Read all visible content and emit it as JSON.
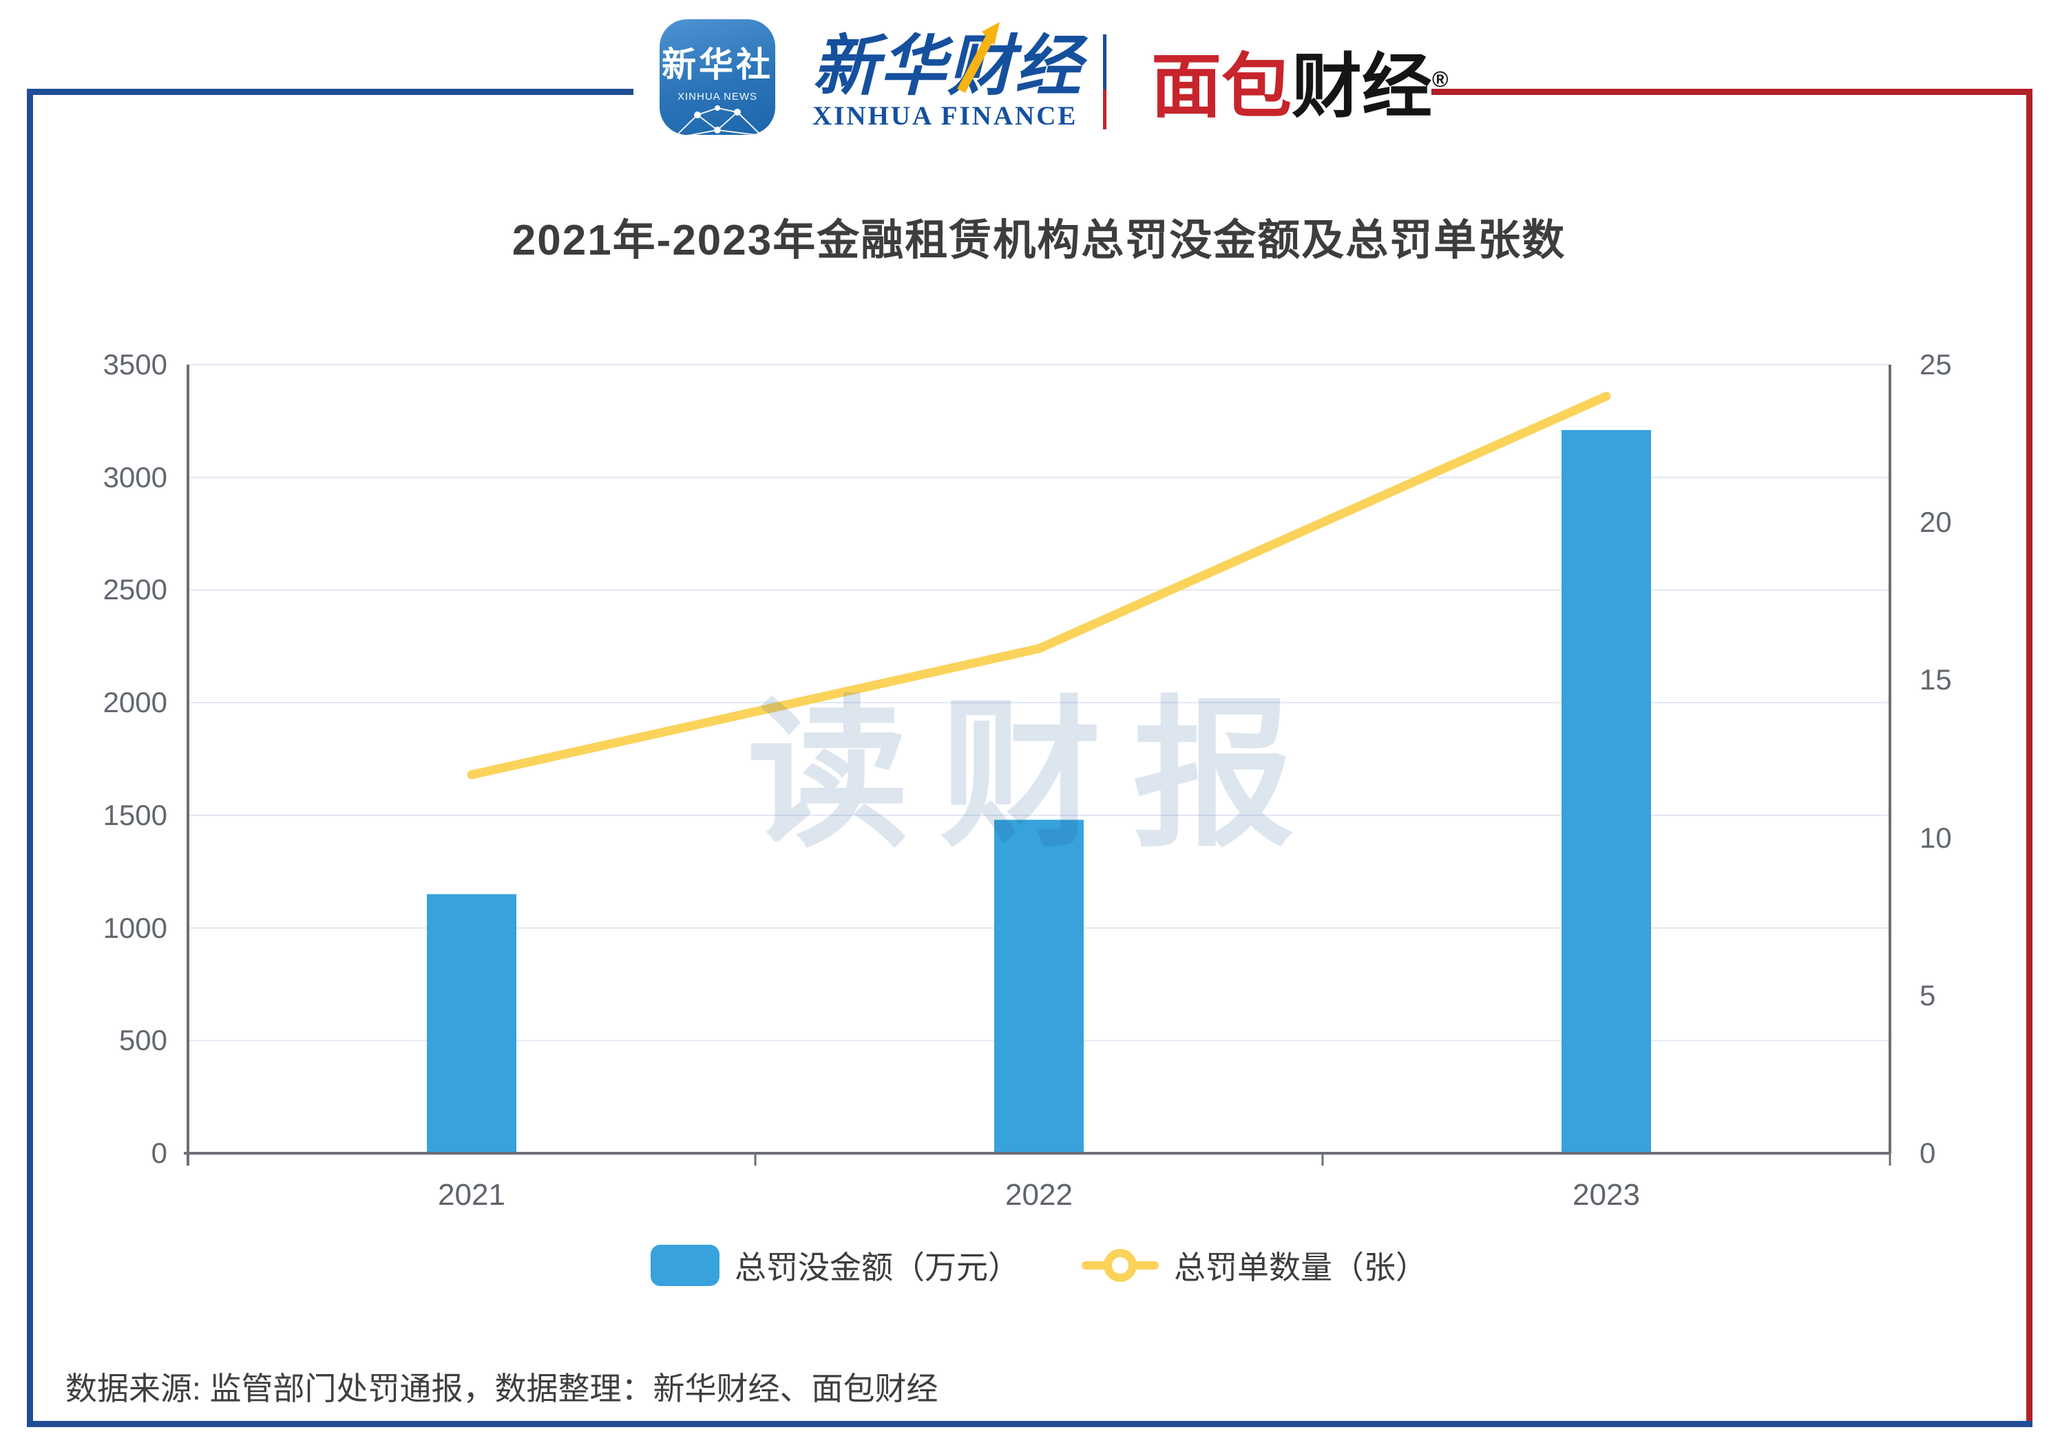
{
  "header": {
    "xinhua_news_icon": {
      "line1": "新华社",
      "line2": "XINHUA NEWS"
    },
    "xinhua_finance": {
      "cn": "新华财经",
      "en": "XINHUA FINANCE"
    },
    "mianbao": {
      "part_red": "面包",
      "part_black": "财经",
      "reg": "®"
    }
  },
  "title": "2021年-2023年金融租赁机构总罚没金额及总罚单张数",
  "watermark": "读财报",
  "footer": "数据来源: 监管部门处罚通报，数据整理：新华财经、面包财经",
  "colors": {
    "bar": "#37A2DC",
    "line": "#FBD35B",
    "grid": "#E1E8F4",
    "axis": "#6B6F76",
    "tick_text": "#62676F",
    "title_text": "#3D3D3D",
    "frame_blue": "#1F4E94",
    "frame_red": "#B22028",
    "watermark": "rgba(28,78,140,0.15)",
    "xinhua_blue": "#15509E",
    "mianbao_red": "#C8242B"
  },
  "chart_data": {
    "type": "combo",
    "categories": [
      "2021",
      "2022",
      "2023"
    ],
    "series": [
      {
        "name": "总罚没金额（万元）",
        "type": "bar",
        "axis": "left",
        "values": [
          1150,
          1480,
          3210
        ],
        "color": "#37A2DC"
      },
      {
        "name": "总罚单数量（张）",
        "type": "line",
        "axis": "right",
        "values": [
          12,
          16,
          24
        ],
        "color": "#FBD35B"
      }
    ],
    "left_axis": {
      "min": 0,
      "max": 3500,
      "step": 500
    },
    "right_axis": {
      "min": 0,
      "max": 25,
      "step": 5
    },
    "grid": true,
    "legend_position": "bottom",
    "title": "2021年-2023年金融租赁机构总罚没金额及总罚单张数"
  }
}
